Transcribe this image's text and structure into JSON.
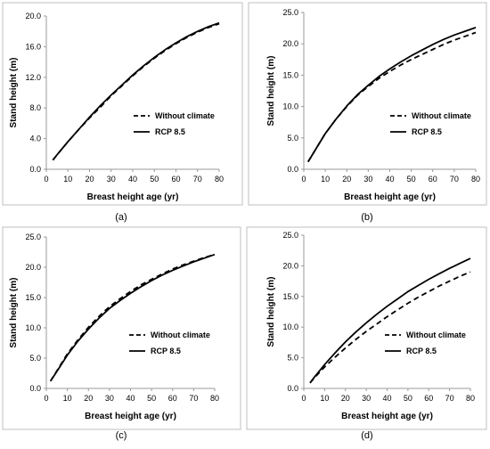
{
  "chart_data": [
    {
      "panel_label": "(a)",
      "type": "line",
      "xlabel": "Breast height age (yr)",
      "ylabel": "Stand height (m)",
      "xlim": [
        0,
        80
      ],
      "ylim": [
        0,
        20
      ],
      "x_ticks": [
        0,
        10,
        20,
        30,
        40,
        50,
        60,
        70,
        80
      ],
      "y_ticks": [
        0.0,
        4.0,
        8.0,
        12.0,
        16.0,
        20.0
      ],
      "y_tick_labels": [
        "0.0",
        "4.0",
        "8.0",
        "12.0",
        "16.0",
        "20.0"
      ],
      "grid": false,
      "legend_position": "right",
      "series": [
        {
          "name": "Without climate",
          "style": "dashed",
          "color": "#000000",
          "x": [
            3,
            5,
            10,
            15,
            20,
            25,
            30,
            35,
            40,
            45,
            50,
            55,
            60,
            65,
            70,
            75,
            80
          ],
          "y": [
            1.2,
            1.9,
            3.6,
            5.2,
            6.7,
            8.1,
            9.6,
            10.9,
            12.2,
            13.4,
            14.5,
            15.5,
            16.4,
            17.2,
            17.9,
            18.5,
            19.0
          ]
        },
        {
          "name": "RCP 8.5",
          "style": "solid",
          "color": "#000000",
          "x": [
            3,
            5,
            10,
            15,
            20,
            25,
            30,
            35,
            40,
            45,
            50,
            55,
            60,
            65,
            70,
            75,
            80
          ],
          "y": [
            1.2,
            1.9,
            3.6,
            5.2,
            6.8,
            8.3,
            9.7,
            11.0,
            12.3,
            13.5,
            14.6,
            15.6,
            16.5,
            17.3,
            18.0,
            18.6,
            19.1
          ]
        }
      ]
    },
    {
      "panel_label": "(b)",
      "type": "line",
      "xlabel": "Breast height age (yr)",
      "ylabel": "Stand height (m)",
      "xlim": [
        0,
        80
      ],
      "ylim": [
        0,
        25
      ],
      "x_ticks": [
        0,
        10,
        20,
        30,
        40,
        50,
        60,
        70,
        80
      ],
      "y_ticks": [
        0.0,
        5.0,
        10.0,
        15.0,
        20.0,
        25.0
      ],
      "y_tick_labels": [
        "0.0",
        "5.0",
        "10.0",
        "15.0",
        "20.0",
        "25.0"
      ],
      "grid": false,
      "legend_position": "right",
      "series": [
        {
          "name": "Without climate",
          "style": "dashed",
          "color": "#000000",
          "x": [
            2,
            5,
            10,
            15,
            20,
            25,
            30,
            35,
            40,
            45,
            50,
            55,
            60,
            65,
            70,
            75,
            80
          ],
          "y": [
            1.2,
            2.9,
            5.7,
            8.0,
            10.0,
            11.8,
            13.2,
            14.5,
            15.6,
            16.6,
            17.5,
            18.3,
            19.1,
            19.9,
            20.6,
            21.2,
            21.8
          ]
        },
        {
          "name": "RCP 8.5",
          "style": "solid",
          "color": "#000000",
          "x": [
            2,
            5,
            10,
            15,
            20,
            25,
            30,
            35,
            40,
            45,
            50,
            55,
            60,
            65,
            70,
            75,
            80
          ],
          "y": [
            1.2,
            2.9,
            5.7,
            8.0,
            10.1,
            11.9,
            13.4,
            14.8,
            16.0,
            17.1,
            18.1,
            19.0,
            19.9,
            20.7,
            21.4,
            22.0,
            22.6
          ]
        }
      ]
    },
    {
      "panel_label": "(c)",
      "type": "line",
      "xlabel": "Breast height age (yr)",
      "ylabel": "Stand height (m)",
      "xlim": [
        0,
        80
      ],
      "ylim": [
        0,
        25
      ],
      "x_ticks": [
        0,
        10,
        20,
        30,
        40,
        50,
        60,
        70,
        80
      ],
      "y_ticks": [
        0.0,
        5.0,
        10.0,
        15.0,
        20.0,
        25.0
      ],
      "y_tick_labels": [
        "0.0",
        "5.0",
        "10.0",
        "15.0",
        "20.0",
        "25.0"
      ],
      "grid": false,
      "legend_position": "right",
      "series": [
        {
          "name": "Without climate",
          "style": "dashed",
          "color": "#000000",
          "x": [
            2,
            5,
            10,
            15,
            20,
            25,
            30,
            35,
            40,
            45,
            50,
            55,
            60,
            65,
            70,
            75,
            80
          ],
          "y": [
            1.2,
            2.9,
            5.7,
            8.0,
            10.1,
            11.9,
            13.5,
            14.8,
            16.0,
            17.1,
            18.0,
            18.9,
            19.7,
            20.4,
            21.0,
            21.6,
            22.1
          ]
        },
        {
          "name": "RCP 8.5",
          "style": "solid",
          "color": "#000000",
          "x": [
            2,
            5,
            10,
            15,
            20,
            25,
            30,
            35,
            40,
            45,
            50,
            55,
            60,
            65,
            70,
            75,
            80
          ],
          "y": [
            1.2,
            2.8,
            5.5,
            7.8,
            9.8,
            11.6,
            13.2,
            14.5,
            15.7,
            16.8,
            17.8,
            18.7,
            19.5,
            20.2,
            20.9,
            21.5,
            22.1
          ]
        }
      ]
    },
    {
      "panel_label": "(d)",
      "type": "line",
      "xlabel": "Breast height age (yr)",
      "ylabel": "Stand height (m)",
      "xlim": [
        0,
        80
      ],
      "ylim": [
        0,
        25
      ],
      "x_ticks": [
        0,
        10,
        20,
        30,
        40,
        50,
        60,
        70,
        80
      ],
      "y_ticks": [
        0.0,
        5.0,
        10.0,
        15.0,
        20.0,
        25.0
      ],
      "y_tick_labels": [
        "0.0",
        "5.0",
        "10.0",
        "15.0",
        "20.0",
        "25.0"
      ],
      "grid": false,
      "legend_position": "right",
      "series": [
        {
          "name": "Without climate",
          "style": "dashed",
          "color": "#000000",
          "x": [
            3,
            5,
            10,
            15,
            20,
            25,
            30,
            35,
            40,
            45,
            50,
            55,
            60,
            65,
            70,
            75,
            80
          ],
          "y": [
            0.9,
            1.7,
            3.5,
            5.1,
            6.6,
            8.0,
            9.3,
            10.5,
            11.7,
            12.8,
            13.9,
            14.9,
            15.8,
            16.7,
            17.5,
            18.3,
            19.0
          ]
        },
        {
          "name": "RCP 8.5",
          "style": "solid",
          "color": "#000000",
          "x": [
            3,
            5,
            10,
            15,
            20,
            25,
            30,
            35,
            40,
            45,
            50,
            55,
            60,
            65,
            70,
            75,
            80
          ],
          "y": [
            0.9,
            1.8,
            3.9,
            5.8,
            7.6,
            9.2,
            10.7,
            12.1,
            13.4,
            14.6,
            15.8,
            16.8,
            17.8,
            18.7,
            19.6,
            20.4,
            21.2
          ]
        }
      ]
    }
  ]
}
